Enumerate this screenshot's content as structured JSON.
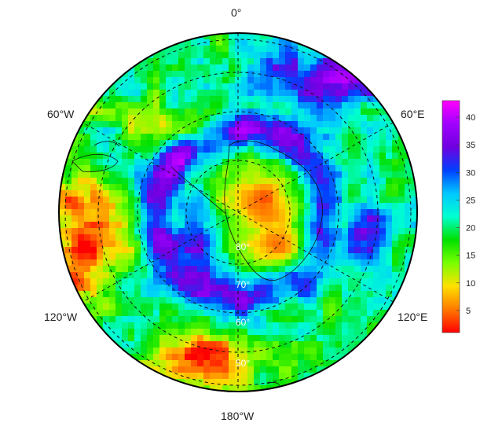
{
  "map": {
    "projection": "south-polar-stereographic",
    "data_kind": "gridded-field",
    "lon_labels": [
      "0°",
      "60°E",
      "120°E",
      "180°W",
      "120°W",
      "60°W"
    ],
    "lat_labels": [
      "80°",
      "70°",
      "60°",
      "50°"
    ],
    "grid_style": "dashed"
  },
  "colorbar": {
    "min": 1,
    "max": 43,
    "ticks": [
      "5",
      "10",
      "15",
      "20",
      "25",
      "30",
      "35",
      "40"
    ],
    "colors": [
      "#ff0000",
      "#ff7a00",
      "#ffe000",
      "#78ff00",
      "#00e000",
      "#00ffd0",
      "#00c8ff",
      "#0040ff",
      "#7000e0",
      "#a000ff",
      "#ff00ff"
    ]
  }
}
